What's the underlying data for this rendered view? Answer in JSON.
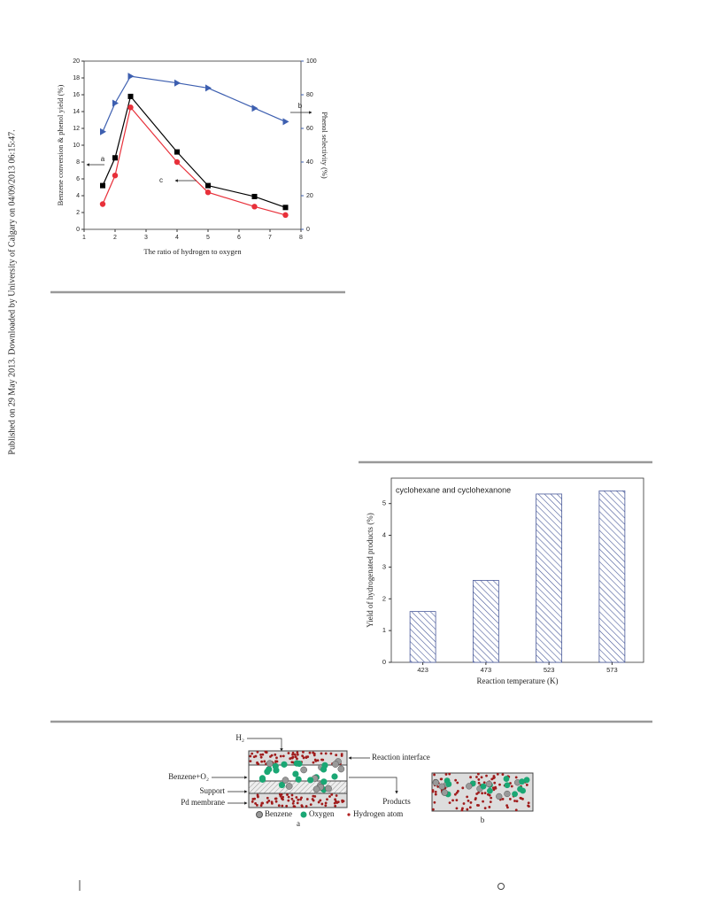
{
  "sidebar": "Published on 29 May 2013. Downloaded by University of Calgary on 04/09/2013 06:15:47.",
  "chart_data": [
    {
      "type": "line",
      "x_label": "The ratio of hydrogen to oxygen",
      "y_label": "Benzene conversion & phenol yield (%)",
      "y2_label": "Phenol selectivity (%)",
      "x": [
        1.6,
        2,
        2.5,
        4,
        5,
        6.5,
        7.5
      ],
      "series": [
        {
          "name": "a",
          "color": "#000000",
          "marker": "square",
          "values": [
            5.2,
            8.5,
            15.8,
            9.2,
            5.2,
            3.9,
            2.6
          ]
        },
        {
          "name": "c",
          "color": "#e8303a",
          "marker": "circle",
          "values": [
            3.0,
            6.4,
            14.5,
            8.0,
            4.4,
            2.7,
            1.7
          ]
        },
        {
          "name": "b",
          "color": "#3d5fb0",
          "marker": "triangle",
          "axis": "y2",
          "values": [
            58,
            75,
            91,
            87,
            84,
            72,
            64
          ]
        }
      ],
      "xlim": [
        1,
        8
      ],
      "xticks": [
        1,
        2,
        3,
        4,
        5,
        6,
        7,
        8
      ],
      "ylim": [
        0,
        20
      ],
      "yticks": [
        0,
        2,
        4,
        6,
        8,
        10,
        12,
        14,
        16,
        18,
        20
      ],
      "y2lim": [
        0,
        100
      ],
      "y2ticks": [
        0,
        20,
        40,
        60,
        80,
        100
      ]
    },
    {
      "type": "bar",
      "title": "cyclohexane and cyclohexanone",
      "x_label": "Reaction temperature (K)",
      "y_label": "Yield of hydrogenated products (%)",
      "categories": [
        "423",
        "473",
        "523",
        "573"
      ],
      "values": [
        1.6,
        2.58,
        5.3,
        5.4
      ],
      "color": "#4a5a9a",
      "ylim": [
        0,
        5.8
      ],
      "yticks": [
        0,
        1,
        2,
        3,
        4,
        5
      ]
    }
  ],
  "diagram": {
    "labels": {
      "h2": "H₂",
      "reaction_interface": "Reaction interface",
      "benzene_o2": "Benzene+O₂",
      "support": "Support",
      "pd_membrane": "Pd membrane",
      "products": "Products"
    },
    "legend": [
      "Benzene",
      "Oxygen",
      "Hydrogen atom"
    ],
    "panels": [
      "a",
      "b"
    ]
  }
}
